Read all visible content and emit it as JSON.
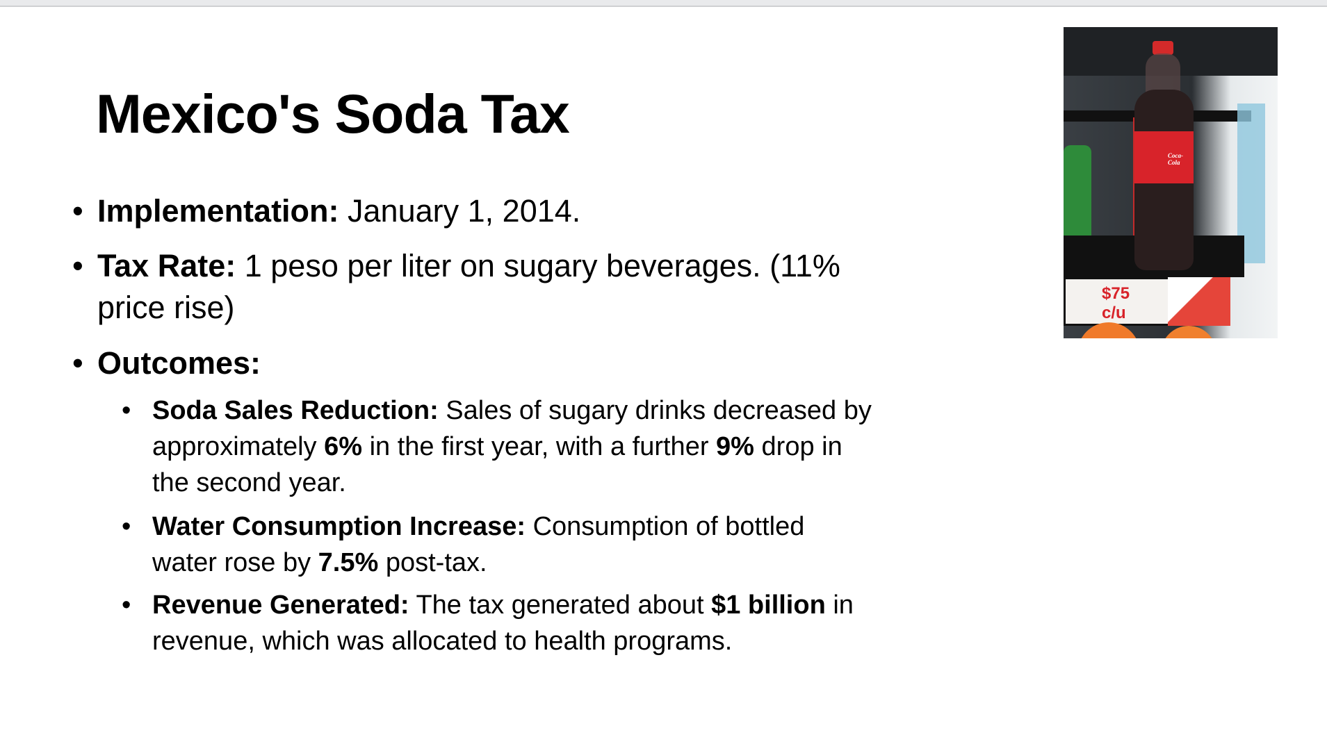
{
  "slide": {
    "title": "Mexico's Soda Tax",
    "bullet_glyph": "•",
    "bullets": [
      {
        "lines": [
          [
            {
              "t": "Implementation:",
              "b": true
            },
            {
              "t": " January 1, 2014."
            }
          ]
        ]
      },
      {
        "lines": [
          [
            {
              "t": "Tax Rate:",
              "b": true
            },
            {
              "t": " 1 peso per liter on sugary beverages. (11%"
            }
          ],
          [
            {
              "t": "price rise)"
            }
          ]
        ]
      },
      {
        "lines": [
          [
            {
              "t": "Outcomes:",
              "b": true
            }
          ]
        ]
      }
    ],
    "sub_bullets": [
      {
        "lines": [
          [
            {
              "t": "Soda Sales Reduction:",
              "b": true
            },
            {
              "t": " Sales of sugary drinks decreased by"
            }
          ],
          [
            {
              "t": "approximately "
            },
            {
              "t": "6%",
              "b": true
            },
            {
              "t": " in the first year, with a further "
            },
            {
              "t": "9%",
              "b": true
            },
            {
              "t": " drop in"
            }
          ],
          [
            {
              "t": "the second year."
            }
          ]
        ]
      },
      {
        "lines": [
          [
            {
              "t": "Water Consumption Increase:",
              "b": true
            },
            {
              "t": " Consumption of bottled"
            }
          ],
          [
            {
              "t": "water rose by "
            },
            {
              "t": "7.5%",
              "b": true
            },
            {
              "t": " post-tax."
            }
          ]
        ]
      },
      {
        "lines": [
          [
            {
              "t": "Revenue Generated:",
              "b": true
            },
            {
              "t": " The tax generated about "
            },
            {
              "t": "$1 billion",
              "b": true
            },
            {
              "t": " in"
            }
          ],
          [
            {
              "t": "revenue, which was allocated to health programs."
            }
          ]
        ]
      }
    ],
    "photo": {
      "brand": "Coca-Cola",
      "price_tag": "$75 c/u"
    }
  },
  "colors": {
    "topbar": "#e9eaec",
    "coke_red": "#d8232a"
  }
}
